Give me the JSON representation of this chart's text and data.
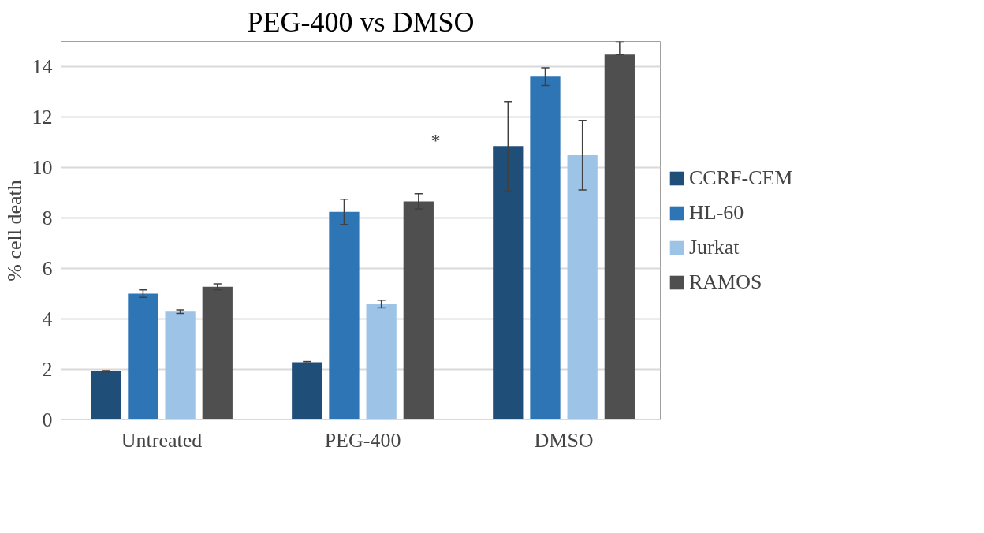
{
  "chart_data": {
    "type": "bar",
    "title": "PEG-400 vs DMSO",
    "ylabel": "% cell death",
    "categories": [
      "Untreated",
      "PEG-400",
      "DMSO"
    ],
    "series": [
      {
        "name": "CCRF-CEM",
        "color": "#1f4e79",
        "values": [
          1.92,
          2.28,
          10.85
        ],
        "errors": [
          0.03,
          0.03,
          1.77
        ]
      },
      {
        "name": "HL-60",
        "color": "#2e75b6",
        "values": [
          5.0,
          8.24,
          13.6
        ],
        "errors": [
          0.15,
          0.5,
          0.35
        ]
      },
      {
        "name": "Jurkat",
        "color": "#9dc3e6",
        "values": [
          4.29,
          4.59,
          10.49
        ],
        "errors": [
          0.07,
          0.15,
          1.38
        ]
      },
      {
        "name": "RAMOS",
        "color": "#4f4f4f",
        "values": [
          5.27,
          8.66,
          14.48
        ],
        "errors": [
          0.12,
          0.3,
          [
            14.48,
            15
          ]
        ]
      }
    ],
    "ylim": [
      0,
      15
    ],
    "yticks": [
      0,
      2,
      4,
      6,
      8,
      10,
      12,
      14
    ],
    "grid": "y",
    "legend": "right",
    "annotations": [
      "*"
    ]
  }
}
